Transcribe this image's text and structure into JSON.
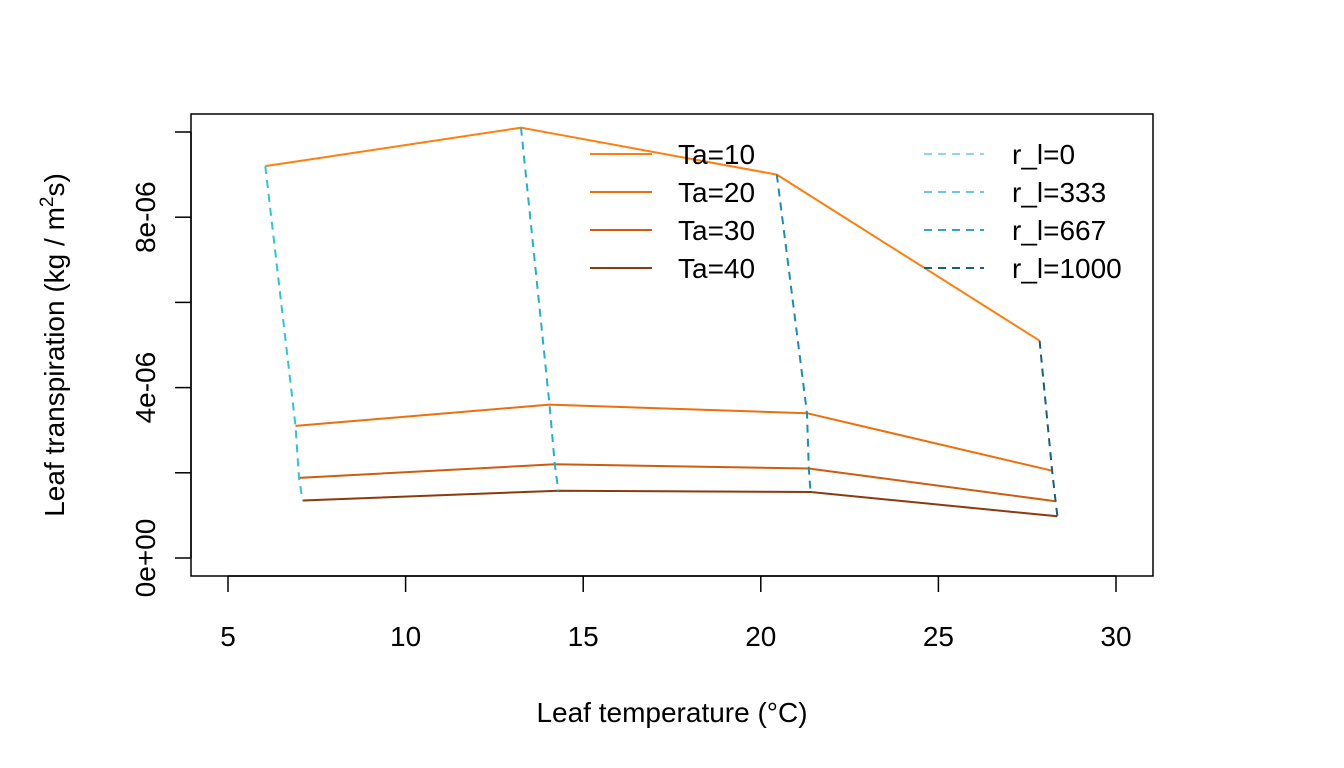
{
  "chart_data": {
    "type": "line",
    "title": "",
    "xlabel": "Leaf temperature (°C)",
    "ylabel_main": "Leaf transpiration (kg / m",
    "ylabel_sup": "2",
    "ylabel_end": "s)",
    "xlim": [
      5,
      30
    ],
    "ylim": [
      0,
      1e-05
    ],
    "x_ticks": [
      5,
      10,
      15,
      20,
      25,
      30
    ],
    "x_tick_labels": [
      "5",
      "10",
      "15",
      "20",
      "25",
      "30"
    ],
    "y_ticks": [
      0,
      2e-06,
      4e-06,
      6e-06,
      8e-06,
      1e-05
    ],
    "y_tick_labels": [
      "0e+00",
      "",
      "4e-06",
      "",
      "8e-06",
      ""
    ],
    "ta_series": [
      {
        "name": "Ta=10",
        "color": "#FF7F0E",
        "points": [
          [
            6.05,
            9.2e-06
          ],
          [
            13.25,
            1.01e-05
          ],
          [
            20.45,
            9e-06
          ],
          [
            27.85,
            5.1e-06
          ]
        ]
      },
      {
        "name": "Ta=20",
        "color": "#EE6F0A",
        "points": [
          [
            6.9,
            3.1e-06
          ],
          [
            14.05,
            3.6e-06
          ],
          [
            21.3,
            3.4e-06
          ],
          [
            28.2,
            2.05e-06
          ]
        ]
      },
      {
        "name": "Ta=30",
        "color": "#D05A0E",
        "points": [
          [
            7.0,
            1.88e-06
          ],
          [
            14.2,
            2.2e-06
          ],
          [
            21.35,
            2.1e-06
          ],
          [
            28.3,
            1.33e-06
          ]
        ]
      },
      {
        "name": "Ta=40",
        "color": "#8B3A0E",
        "points": [
          [
            7.1,
            1.35e-06
          ],
          [
            14.3,
            1.58e-06
          ],
          [
            21.4,
            1.55e-06
          ],
          [
            28.35,
            9.8e-07
          ]
        ]
      }
    ],
    "rl_series": [
      {
        "name": "r_l=0",
        "color": "#2EC4D6",
        "points": [
          [
            6.05,
            9.2e-06
          ],
          [
            6.9,
            3.1e-06
          ],
          [
            7.0,
            1.88e-06
          ],
          [
            7.1,
            1.35e-06
          ]
        ]
      },
      {
        "name": "r_l=333",
        "color": "#23B1C9",
        "points": [
          [
            13.25,
            1.01e-05
          ],
          [
            14.05,
            3.6e-06
          ],
          [
            14.2,
            2.2e-06
          ],
          [
            14.3,
            1.58e-06
          ]
        ]
      },
      {
        "name": "r_l=667",
        "color": "#1A8EAE",
        "points": [
          [
            20.45,
            9e-06
          ],
          [
            21.3,
            3.4e-06
          ],
          [
            21.35,
            2.1e-06
          ],
          [
            21.4,
            1.55e-06
          ]
        ]
      },
      {
        "name": "r_l=1000",
        "color": "#1B5E78",
        "points": [
          [
            27.85,
            5.1e-06
          ],
          [
            28.2,
            2.05e-06
          ],
          [
            28.3,
            1.33e-06
          ],
          [
            28.35,
            9.8e-07
          ]
        ]
      }
    ],
    "legend_ta": {
      "entries": [
        "Ta=10",
        "Ta=20",
        "Ta=30",
        "Ta=40"
      ],
      "colors": [
        "#FF7F0E",
        "#EE6F0A",
        "#D05A0E",
        "#8B3A0E"
      ],
      "placement": "top-center"
    },
    "legend_rl": {
      "entries": [
        "r_l=0",
        "r_l=333",
        "r_l=667",
        "r_l=1000"
      ],
      "colors": [
        "#8ED4EA",
        "#6CC4E4",
        "#3A9FC7",
        "#1B5E78"
      ],
      "placement": "top-right"
    }
  }
}
